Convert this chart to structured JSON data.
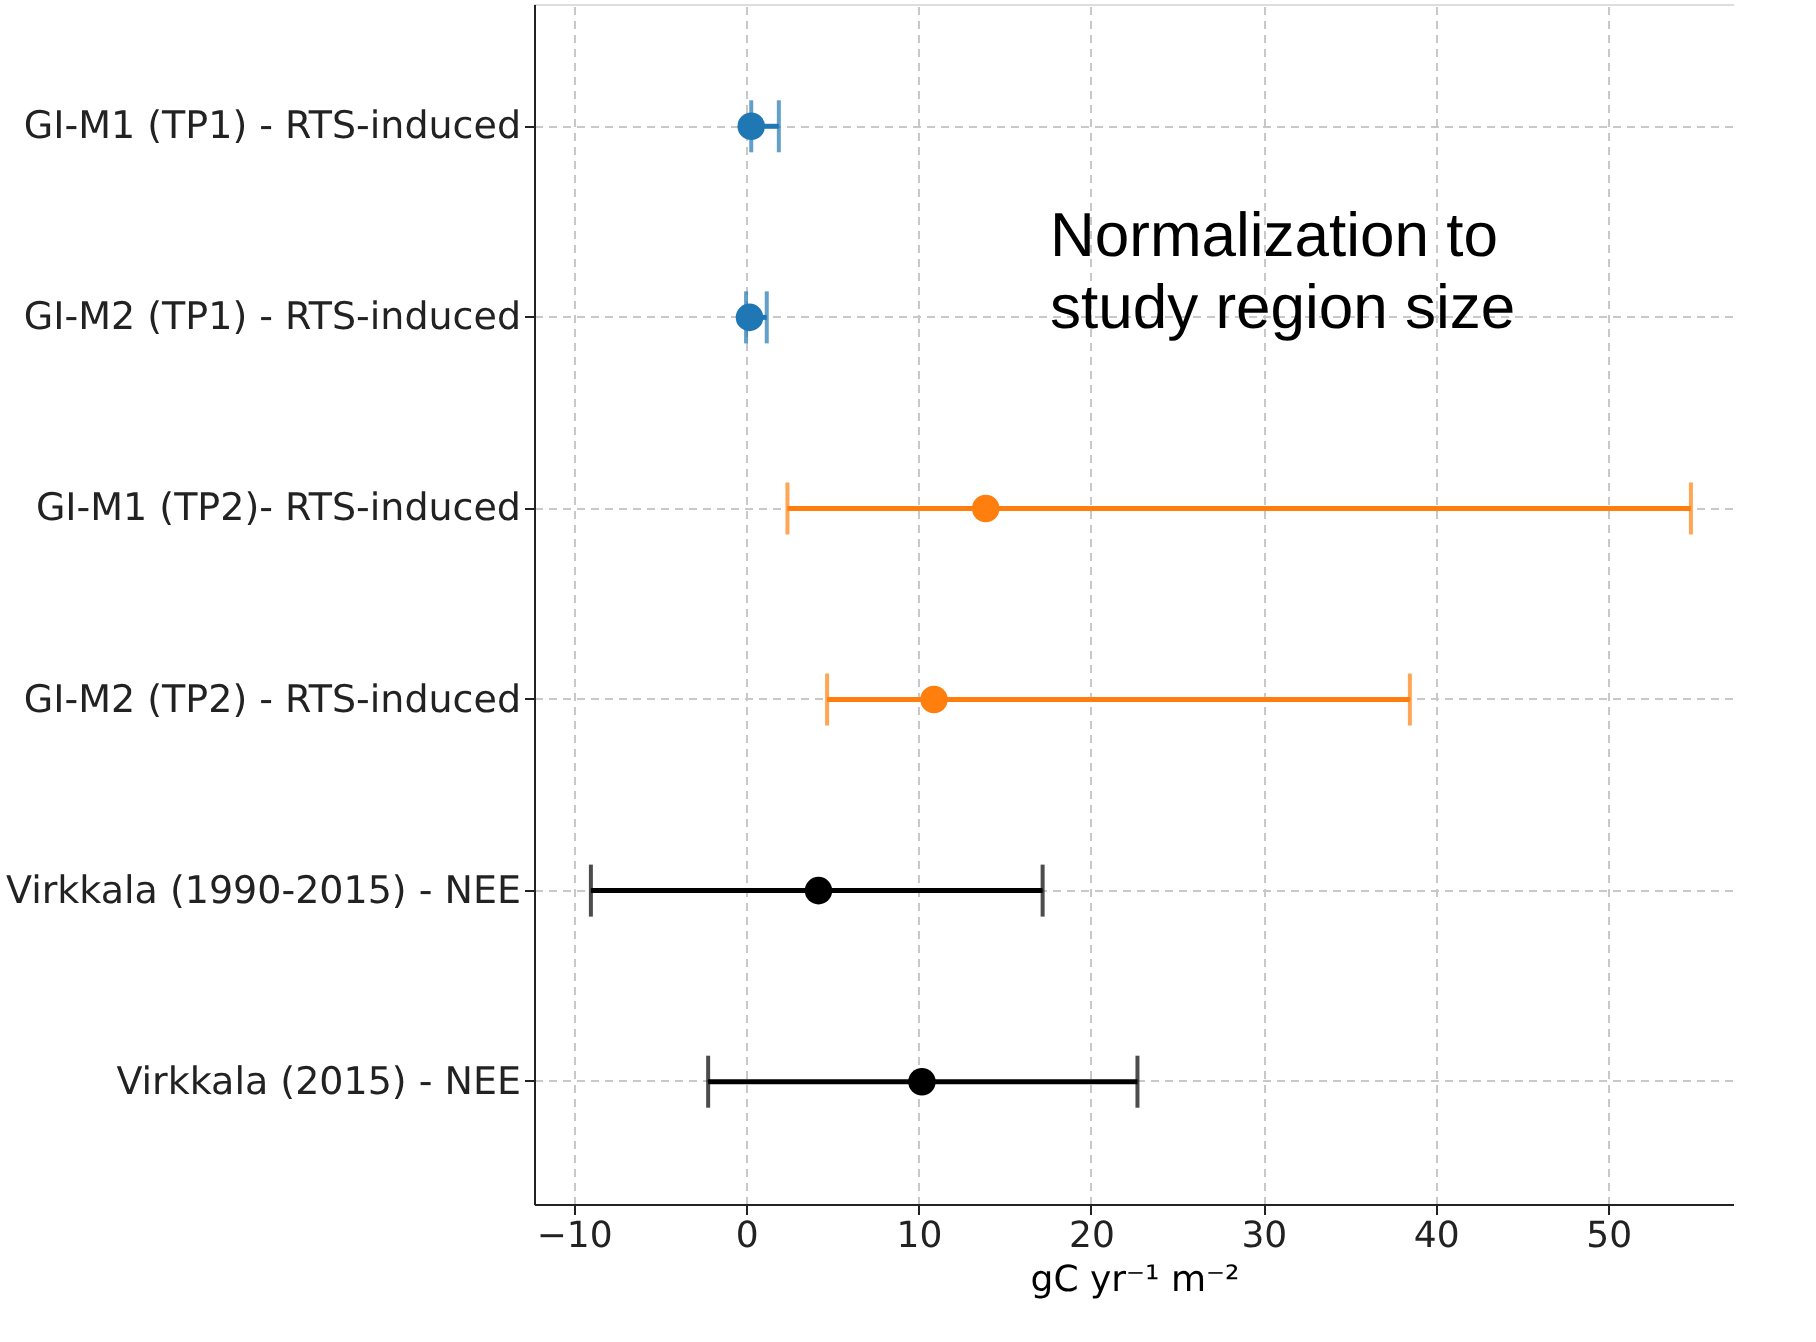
{
  "chart_data": {
    "type": "scatter",
    "orientation": "horizontal",
    "xlabel": "gC yr⁻¹ m⁻²",
    "categories": [
      "GI-M1 (TP1) - RTS-induced",
      "GI-M2 (TP1) - RTS-induced",
      "GI-M1 (TP2)- RTS-induced",
      "GI-M2 (TP2) - RTS-induced",
      "Virkkala (1990-2015) - NEE",
      "Virkkala (2015) - NEE"
    ],
    "series": [
      {
        "color": "#1f77b4",
        "values": [
          0.3,
          0.2,
          null,
          null,
          null,
          null
        ],
        "errors": [
          [
            0.3,
            1.9
          ],
          [
            0.0,
            1.2
          ],
          null,
          null,
          null,
          null
        ]
      },
      {
        "color": "#ff7f0e",
        "values": [
          null,
          null,
          13.9,
          10.9,
          null,
          null
        ],
        "errors": [
          null,
          null,
          [
            2.4,
            54.8
          ],
          [
            4.7,
            38.5
          ],
          null,
          null
        ]
      },
      {
        "color": "#000000",
        "values": [
          null,
          null,
          null,
          null,
          4.2,
          10.2
        ],
        "errors": [
          null,
          null,
          null,
          null,
          [
            -9.0,
            17.2
          ],
          [
            -2.2,
            22.7
          ]
        ]
      }
    ],
    "xlim": [
      -12.3,
      57.3
    ],
    "xticks": [
      -10,
      0,
      10,
      20,
      30,
      40,
      50
    ],
    "grid": true,
    "marker": "circle",
    "annotations": [
      "Normalization to\nstudy region size"
    ]
  }
}
